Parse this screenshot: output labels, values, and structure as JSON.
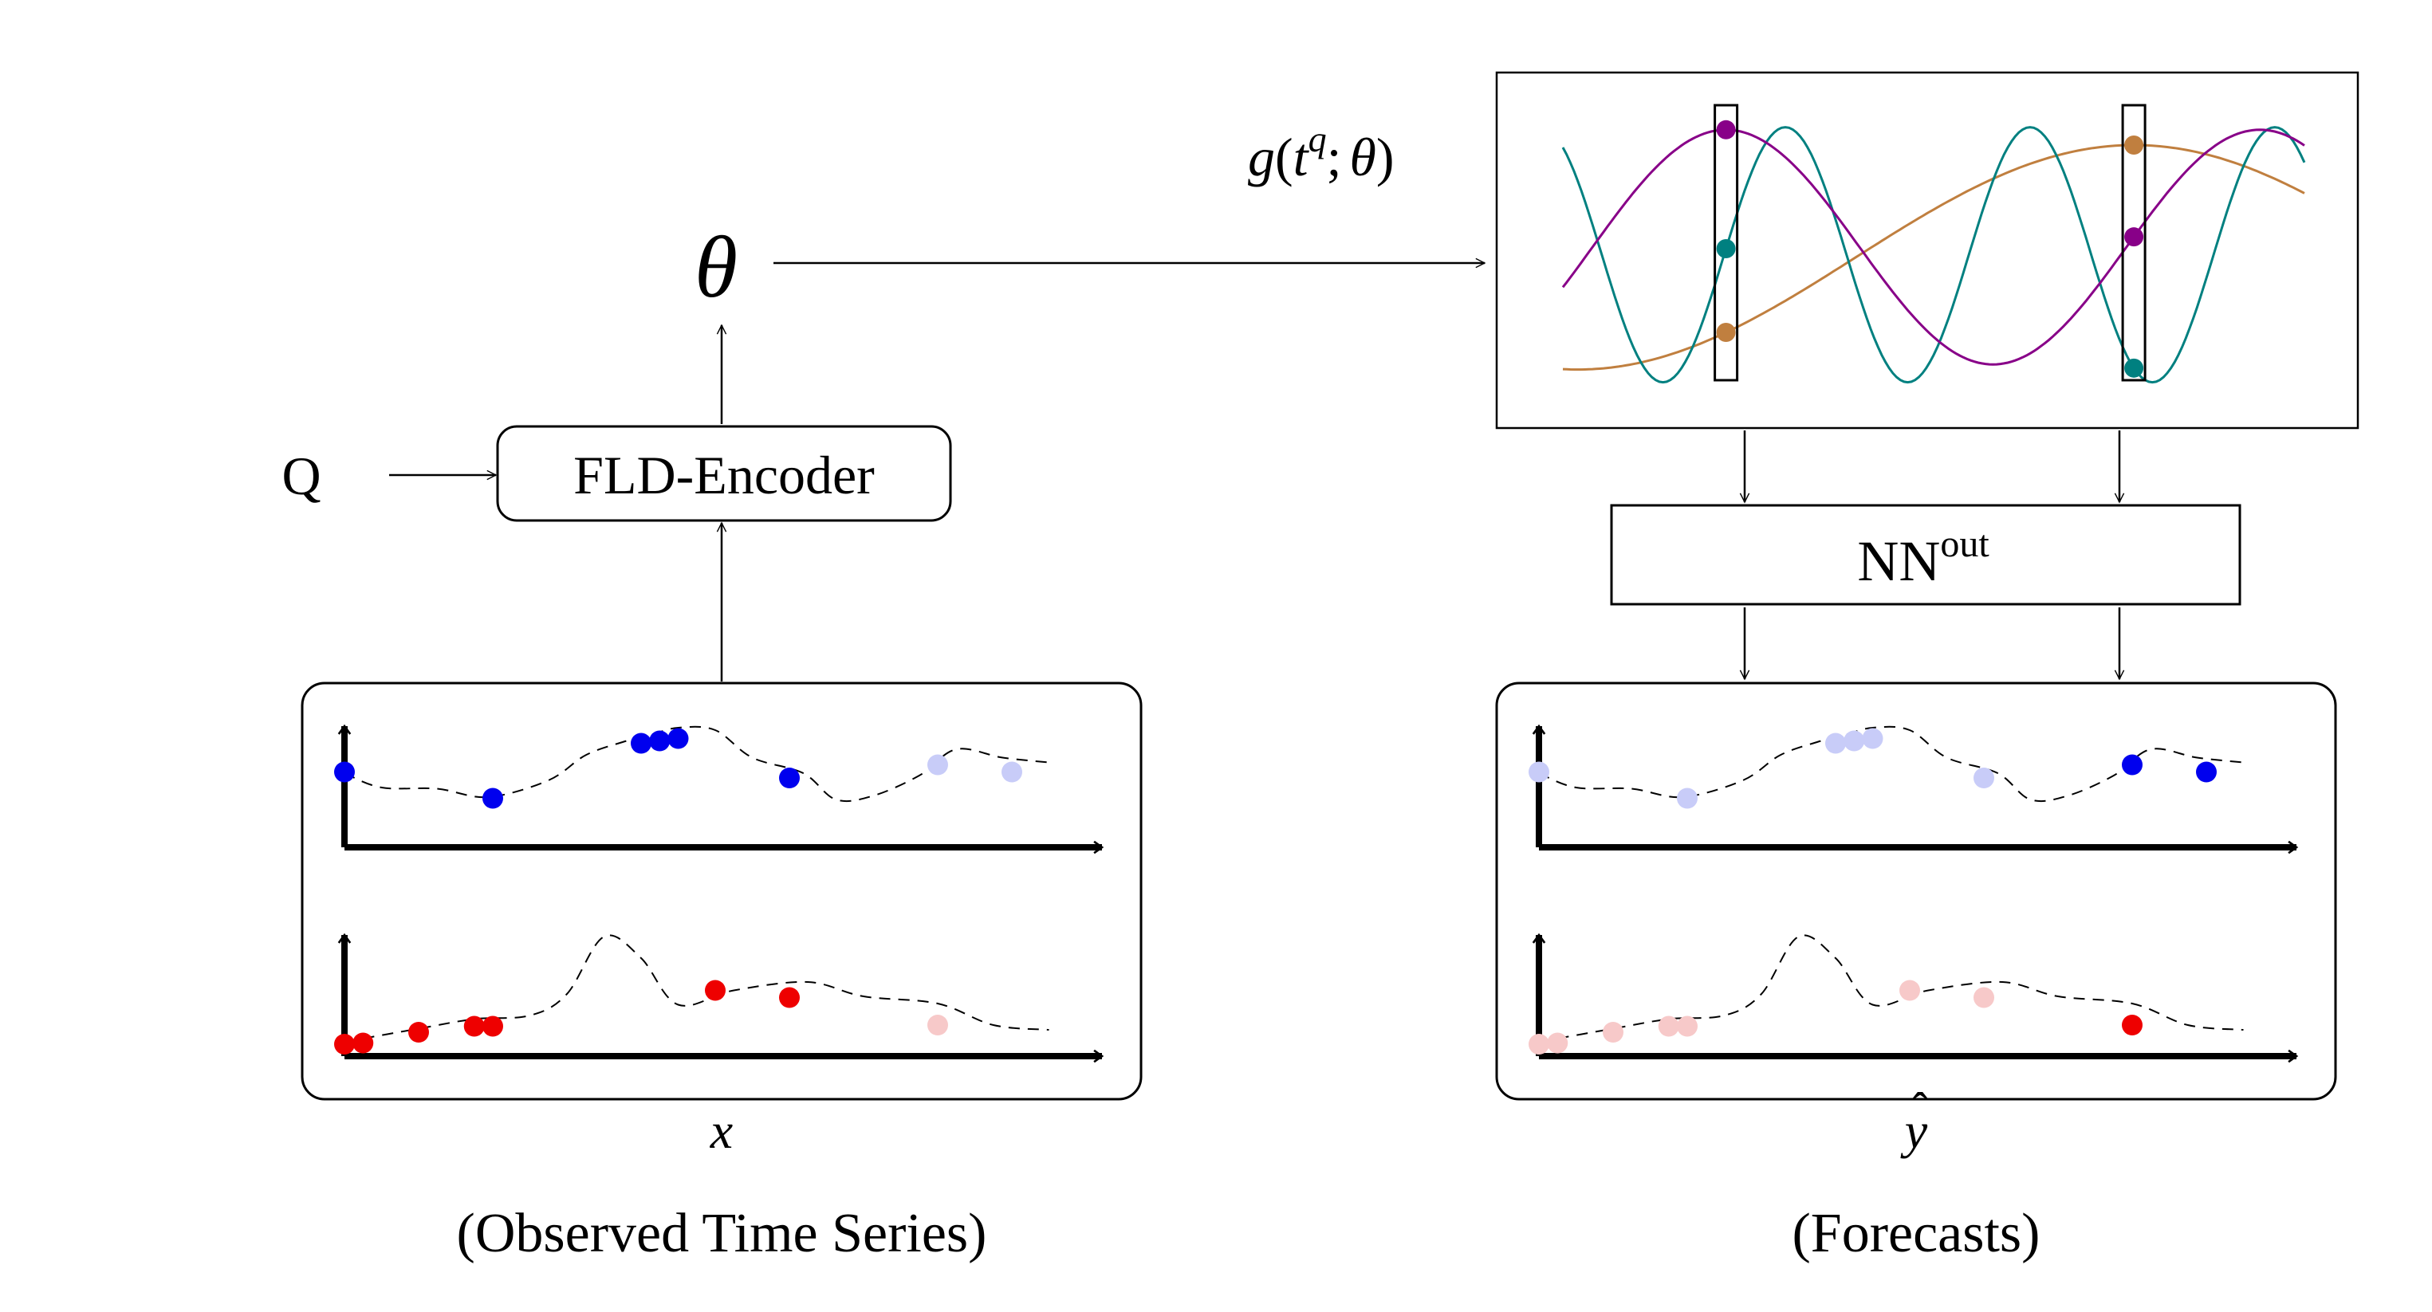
{
  "labels": {
    "theta": "θ",
    "q_input": "Q",
    "encoder": "FLD-Encoder",
    "g_func": {
      "g": "g",
      "open": "(",
      "t": "t",
      "q": "q",
      "sep": ";",
      "theta": "θ",
      "close": ")"
    },
    "nn_out": {
      "base": "NN",
      "sup": "out"
    },
    "x_var": "x",
    "y_hat_var": "y",
    "hat_mark": "ˆ",
    "observed_caption": "(Observed Time Series)",
    "forecast_caption": "(Forecasts)"
  },
  "colors": {
    "blue": "#0000ee",
    "blue_faded": "#c8ccf8",
    "red": "#ee0000",
    "red_faded": "#f7c9c9",
    "purple": "#880088",
    "teal": "#008080",
    "orange": "#c07f3f"
  },
  "series": {
    "top": [
      {
        "x": 0,
        "y": 0.62
      },
      {
        "x": 0.4,
        "y": 0.5
      },
      {
        "x": 1.0,
        "y": 0.49
      },
      {
        "x": 1.55,
        "y": 0.42
      },
      {
        "x": 2.2,
        "y": 0.56
      },
      {
        "x": 2.6,
        "y": 0.77
      },
      {
        "x": 3.0,
        "y": 0.88
      },
      {
        "x": 3.3,
        "y": 0.94
      },
      {
        "x": 3.6,
        "y": 1.0
      },
      {
        "x": 4.0,
        "y": 0.98
      },
      {
        "x": 4.4,
        "y": 0.75
      },
      {
        "x": 4.95,
        "y": 0.62
      },
      {
        "x": 5.3,
        "y": 0.4
      },
      {
        "x": 5.7,
        "y": 0.43
      },
      {
        "x": 6.2,
        "y": 0.6
      },
      {
        "x": 6.6,
        "y": 0.82
      },
      {
        "x": 7.1,
        "y": 0.75
      },
      {
        "x": 7.6,
        "y": 0.71
      }
    ],
    "bottom": [
      {
        "x": 0,
        "y": 0.12
      },
      {
        "x": 0.8,
        "y": 0.23
      },
      {
        "x": 1.4,
        "y": 0.31
      },
      {
        "x": 2.0,
        "y": 0.34
      },
      {
        "x": 2.4,
        "y": 0.52
      },
      {
        "x": 2.8,
        "y": 1.0
      },
      {
        "x": 3.2,
        "y": 0.82
      },
      {
        "x": 3.6,
        "y": 0.43
      },
      {
        "x": 4.2,
        "y": 0.55
      },
      {
        "x": 5.0,
        "y": 0.62
      },
      {
        "x": 5.6,
        "y": 0.5
      },
      {
        "x": 6.4,
        "y": 0.44
      },
      {
        "x": 7.0,
        "y": 0.26
      },
      {
        "x": 7.6,
        "y": 0.22
      }
    ],
    "top_points": [
      {
        "x": 0.0,
        "y": 0.63,
        "observed": true
      },
      {
        "x": 1.6,
        "y": 0.41,
        "observed": true
      },
      {
        "x": 3.2,
        "y": 0.87,
        "observed": true
      },
      {
        "x": 3.4,
        "y": 0.89,
        "observed": true
      },
      {
        "x": 3.6,
        "y": 0.91,
        "observed": true
      },
      {
        "x": 4.8,
        "y": 0.58,
        "observed": true
      },
      {
        "x": 6.4,
        "y": 0.69,
        "observed": false
      },
      {
        "x": 7.2,
        "y": 0.63,
        "observed": false
      }
    ],
    "bottom_points": [
      {
        "x": 0.0,
        "y": 0.1,
        "observed": true
      },
      {
        "x": 0.2,
        "y": 0.11,
        "observed": true
      },
      {
        "x": 0.8,
        "y": 0.2,
        "observed": true
      },
      {
        "x": 1.4,
        "y": 0.25,
        "observed": true
      },
      {
        "x": 1.6,
        "y": 0.25,
        "observed": true
      },
      {
        "x": 4.0,
        "y": 0.55,
        "observed": true
      },
      {
        "x": 4.8,
        "y": 0.49,
        "observed": true
      },
      {
        "x": 6.4,
        "y": 0.26,
        "observed": false
      }
    ],
    "forecast_top_highlight": [
      6.4,
      7.2
    ],
    "forecast_bottom_highlight": [
      6.4
    ]
  },
  "basis_functions": {
    "window_t1": 0.22,
    "window_t2": 0.77,
    "purple": {
      "amplitude": 0.46,
      "period": 0.72,
      "phase": 0.22,
      "offset": 0.5
    },
    "teal": {
      "amplitude": 0.5,
      "period": 0.33,
      "phase": 0.3,
      "offset": 0.47
    },
    "orange": {
      "amplitude": 0.44,
      "period": 1.5,
      "phase": 0.77,
      "offset": 0.46
    }
  }
}
